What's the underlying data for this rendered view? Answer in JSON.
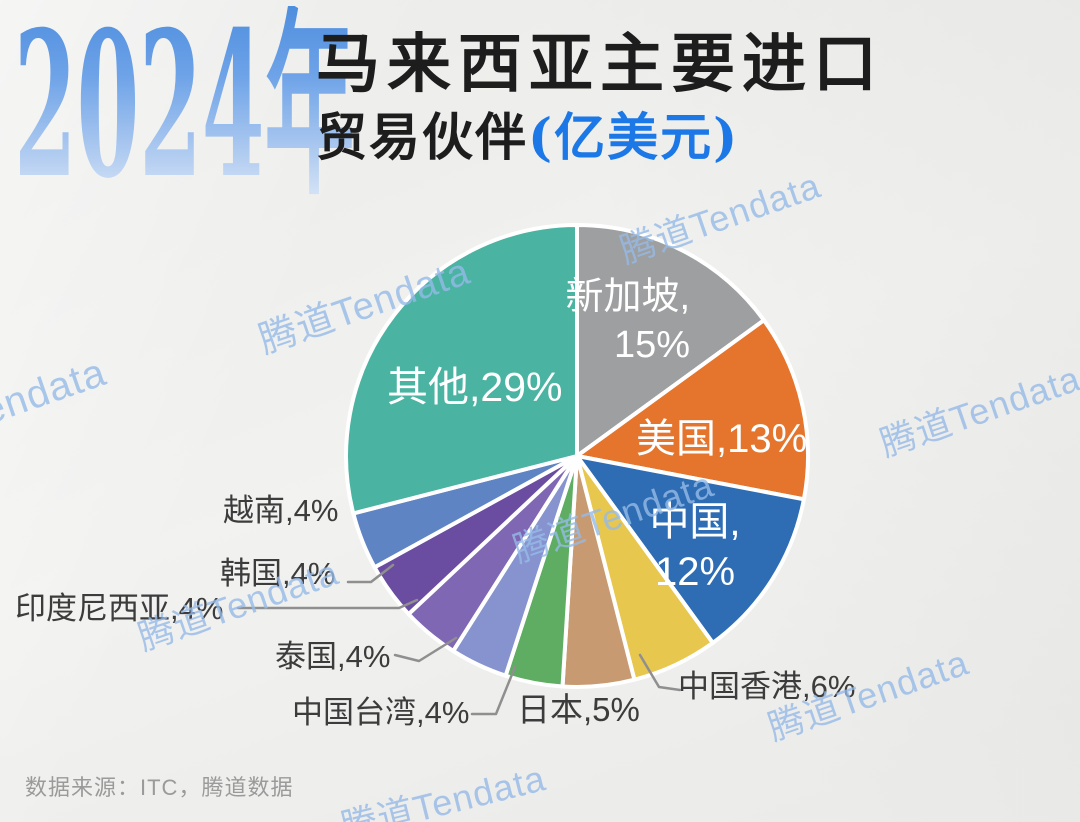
{
  "header": {
    "year": "2024年",
    "title_line1": "马来西亚主要进口",
    "title_line2": "贸易伙伴",
    "title_unit": "(亿美元)"
  },
  "watermark": {
    "text": "腾道Tendata",
    "color": "#96bbe8"
  },
  "footer": {
    "source": "数据来源：ITC，腾道数据"
  },
  "chart_data": {
    "type": "pie",
    "title": "2024年马来西亚主要进口贸易伙伴(亿美元)",
    "unit": "percent share",
    "start_angle_deg": 0,
    "direction": "clockwise",
    "legend_position": "none",
    "slices": [
      {
        "name": "新加坡",
        "pct": 15,
        "color": "#9e9fa0",
        "label_lines": [
          "新加坡,",
          "15%"
        ],
        "placement": "inside"
      },
      {
        "name": "美国",
        "pct": 13,
        "color": "#e5742c",
        "label_lines": [
          "美国,13%"
        ],
        "placement": "inside"
      },
      {
        "name": "中国",
        "pct": 12,
        "color": "#2e6db4",
        "label_lines": [
          "中国,",
          "12%"
        ],
        "placement": "inside"
      },
      {
        "name": "中国香港",
        "pct": 6,
        "color": "#e7c74e",
        "label_lines": [
          "中国香港,6%"
        ],
        "placement": "outside"
      },
      {
        "name": "日本",
        "pct": 5,
        "color": "#c89a71",
        "label_lines": [
          "日本,5%"
        ],
        "placement": "outside"
      },
      {
        "name": "中国台湾",
        "pct": 4,
        "color": "#5ead62",
        "label_lines": [
          "中国台湾,4%"
        ],
        "placement": "outside"
      },
      {
        "name": "泰国",
        "pct": 4,
        "color": "#8793cf",
        "label_lines": [
          "泰国,4%"
        ],
        "placement": "outside"
      },
      {
        "name": "印度尼西亚",
        "pct": 4,
        "color": "#7f67b3",
        "label_lines": [
          "印度尼西亚,4%"
        ],
        "placement": "outside"
      },
      {
        "name": "韩国",
        "pct": 4,
        "color": "#6a4da0",
        "label_lines": [
          "韩国,4%"
        ],
        "placement": "outside"
      },
      {
        "name": "越南",
        "pct": 4,
        "color": "#5f84c3",
        "label_lines": [
          "越南,4%"
        ],
        "placement": "outside"
      },
      {
        "name": "其他",
        "pct": 29,
        "color": "#4ab3a1",
        "label_lines": [
          "其他,29%"
        ],
        "placement": "inside"
      }
    ]
  }
}
